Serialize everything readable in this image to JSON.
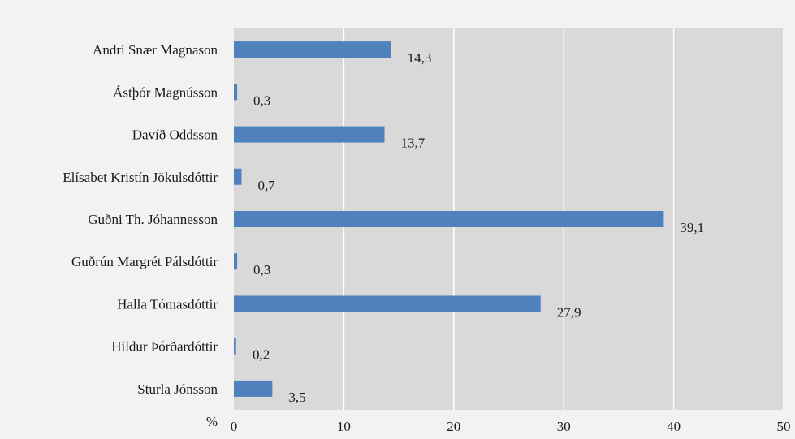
{
  "chart_data": {
    "type": "bar",
    "orientation": "horizontal",
    "categories": [
      "Andri Snær Magnason",
      "Ástþór Magnússon",
      "Davíð Oddsson",
      "Elísabet Kristín Jökulsdóttir",
      "Guðni Th. Jóhannesson",
      "Guðrún Margrét Pálsdóttir",
      "Halla Tómasdóttir",
      "Hildur Þórðardóttir",
      "Sturla Jónsson"
    ],
    "values": [
      14.3,
      0.3,
      13.7,
      0.7,
      39.1,
      0.3,
      27.9,
      0.2,
      3.5
    ],
    "data_labels": [
      "14,3",
      "0,3",
      "13,7",
      "0,7",
      "39,1",
      "0,3",
      "27,9",
      "0,2",
      "3,5"
    ],
    "xlabel": "%",
    "ylabel": "",
    "xlim": [
      0,
      50
    ],
    "x_ticks": [
      0,
      10,
      20,
      30,
      40,
      50
    ],
    "x_tick_labels": [
      "0",
      "10",
      "20",
      "30",
      "40",
      "50"
    ],
    "grid": true,
    "colors": {
      "bar": "#4f81bd",
      "plot_background": "#d9d9d9",
      "page_background": "#f2f2f2",
      "gridline": "#ffffff",
      "text": "#1a1a1a"
    }
  }
}
